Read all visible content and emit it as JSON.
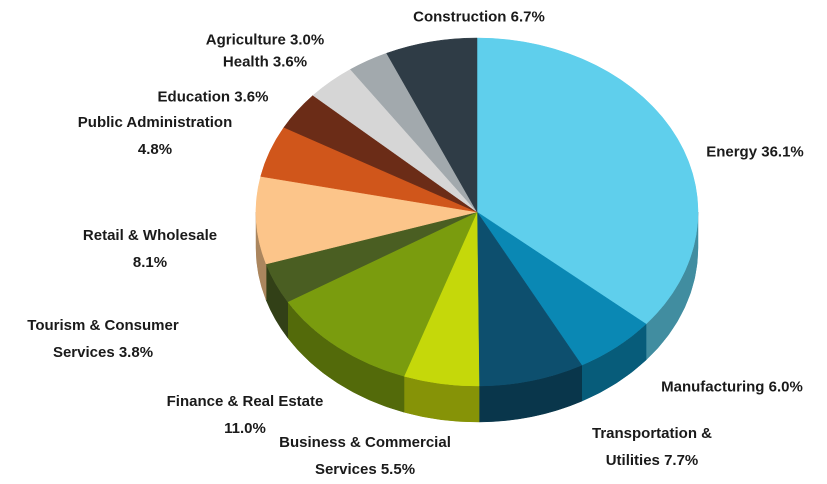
{
  "chart_data": {
    "type": "pie",
    "categories": [
      "Energy",
      "Manufacturing",
      "Transportation & Utilities",
      "Business & Commercial Services",
      "Finance & Real Estate",
      "Tourism & Consumer Services",
      "Retail & Wholesale",
      "Public Administration",
      "Education",
      "Health",
      "Agriculture",
      "Construction"
    ],
    "values": [
      36.1,
      6.0,
      7.7,
      5.5,
      11.0,
      3.8,
      8.1,
      4.8,
      3.6,
      3.6,
      3.0,
      6.7
    ],
    "value_labels": [
      "36.1%",
      "6.0%",
      "7.7%",
      "5.5%",
      "11.0%",
      "3.8%",
      "8.1%",
      "4.8%",
      "3.6%",
      "3.6%",
      "3.0%",
      "6.7%"
    ],
    "colors": [
      "#5fcfec",
      "#0a88b4",
      "#0d4f6e",
      "#c5d80a",
      "#7a9c0e",
      "#4a5e22",
      "#fcc58a",
      "#d0561b",
      "#6b2c17",
      "#d6d6d6",
      "#a2a9ad",
      "#2f3c46"
    ]
  }
}
